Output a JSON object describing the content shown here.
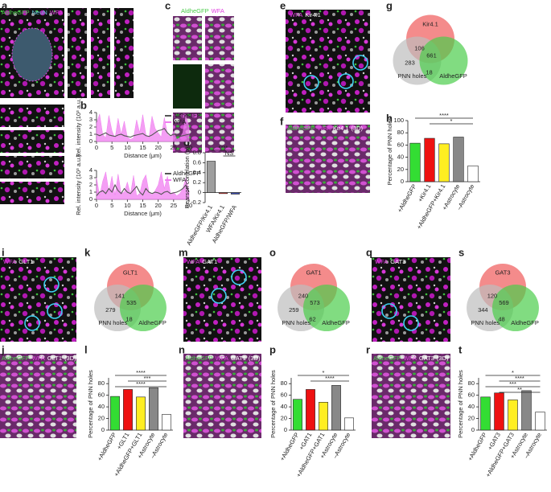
{
  "panel_letters": [
    "a",
    "b",
    "c",
    "d",
    "e",
    "f",
    "g",
    "h",
    "i",
    "j",
    "k",
    "l",
    "m",
    "n",
    "o",
    "p",
    "q",
    "r",
    "s",
    "t"
  ],
  "image_labels": {
    "a": [
      {
        "text": "AldheGFP",
        "color": "#4ccd4c"
      },
      {
        "text": "NeuN",
        "color": "#6fd3e6"
      },
      {
        "text": "WFA",
        "color": "#e040e0"
      }
    ],
    "c": [
      {
        "text": "AldheGFP",
        "color": "#4ccd4c"
      },
      {
        "text": "WFA",
        "color": "#e040e0"
      },
      {
        "text": "(3D)",
        "color": "#ffffff"
      }
    ],
    "e": [
      {
        "text": "WFA",
        "color": "#e040e0"
      },
      {
        "text": "Kir4.1",
        "color": "#ffffff"
      }
    ],
    "f": [
      {
        "text": "AldheGFP",
        "color": "#4ccd4c"
      },
      {
        "text": "WFA",
        "color": "#e040e0"
      },
      {
        "text": "Kir4.1",
        "color": "#ffffff"
      },
      {
        "text": "(3D)",
        "color": "#ffffff"
      }
    ],
    "i": [
      {
        "text": "WFA",
        "color": "#e040e0"
      },
      {
        "text": "GLT1",
        "color": "#ffffff"
      }
    ],
    "j": [
      {
        "text": "AldheGFP",
        "color": "#4ccd4c"
      },
      {
        "text": "WFA",
        "color": "#e040e0"
      },
      {
        "text": "GLT1",
        "color": "#ffffff"
      },
      {
        "text": "(3D)",
        "color": "#ffffff"
      }
    ],
    "m": [
      {
        "text": "WFA",
        "color": "#e040e0"
      },
      {
        "text": "GAT1",
        "color": "#ffffff"
      }
    ],
    "n": [
      {
        "text": "AldheGFP",
        "color": "#4ccd4c"
      },
      {
        "text": "WFA",
        "color": "#e040e0"
      },
      {
        "text": "GAT1",
        "color": "#ffffff"
      },
      {
        "text": "(3D)",
        "color": "#ffffff"
      }
    ],
    "q": [
      {
        "text": "WFA",
        "color": "#e040e0"
      },
      {
        "text": "GAT3",
        "color": "#ffffff"
      }
    ],
    "r": [
      {
        "text": "AldheGFP",
        "color": "#4ccd4c"
      },
      {
        "text": "WFA",
        "color": "#e040e0"
      },
      {
        "text": "GAT3",
        "color": "#ffffff"
      },
      {
        "text": "(3D)",
        "color": "#ffffff"
      }
    ]
  },
  "chart_data": [
    {
      "type": "line",
      "x_label": "Distance (μm)",
      "y_label": "Rel. intensity (10³ a.u.)",
      "xlim": [
        0,
        30
      ],
      "xticks": [
        0,
        5,
        10,
        15,
        20,
        25,
        30
      ],
      "ylim": [
        0,
        4
      ],
      "yticks": [
        0,
        1,
        2,
        3,
        4
      ],
      "x": [
        0,
        1,
        2,
        3,
        4,
        5,
        6,
        7,
        8,
        9,
        10,
        11,
        12,
        13,
        14,
        15,
        16,
        17,
        18,
        19,
        20,
        21,
        22,
        23,
        24,
        25,
        26,
        27,
        28,
        29,
        30
      ],
      "series": [
        {
          "name": "AldheGFP",
          "color": "#555555",
          "area": false,
          "values": [
            1.0,
            0.8,
            1.0,
            1.2,
            0.9,
            0.8,
            0.7,
            0.9,
            1.0,
            0.8,
            0.7,
            0.6,
            0.8,
            0.9,
            1.0,
            1.1,
            0.8,
            0.7,
            0.9,
            1.2,
            1.5,
            1.6,
            1.8,
            1.2,
            0.8,
            1.0,
            0.9,
            0.7,
            0.8,
            0.9,
            1.0
          ]
        },
        {
          "name": "WFA",
          "color": "#f07ef0",
          "area": true,
          "values": [
            2.5,
            3.8,
            1.0,
            0.5,
            3.6,
            1.5,
            0.4,
            3.2,
            1.0,
            2.8,
            0.6,
            0.3,
            0.5,
            3.0,
            1.2,
            3.7,
            1.0,
            0.5,
            3.5,
            1.8,
            1.2,
            0.6,
            3.3,
            1.0,
            0.6,
            1.4,
            0.3,
            0.5,
            1.2,
            3.6,
            2.0
          ]
        }
      ]
    },
    {
      "type": "line",
      "x_label": "Distance (μm)",
      "y_label": "Rel. intensity (10³ a.u.)",
      "xlim": [
        0,
        30
      ],
      "xticks": [
        0,
        5,
        10,
        15,
        20,
        25,
        30
      ],
      "ylim": [
        0,
        4
      ],
      "yticks": [
        0,
        1,
        2,
        3,
        4
      ],
      "x": [
        0,
        1,
        2,
        3,
        4,
        5,
        6,
        7,
        8,
        9,
        10,
        11,
        12,
        13,
        14,
        15,
        16,
        17,
        18,
        19,
        20,
        21,
        22,
        23,
        24,
        25,
        26,
        27,
        28,
        29,
        30
      ],
      "series": [
        {
          "name": "AldheGFP",
          "color": "#555555",
          "area": false,
          "values": [
            0.5,
            1.0,
            1.2,
            0.8,
            1.5,
            1.0,
            2.0,
            1.2,
            0.8,
            1.5,
            1.0,
            0.8,
            1.3,
            1.8,
            1.0,
            0.6,
            1.5,
            1.0,
            0.8,
            1.0,
            0.9,
            0.7,
            1.0,
            1.1,
            0.8,
            0.9,
            1.0,
            1.2,
            1.5,
            2.0,
            1.0
          ]
        },
        {
          "name": "WFA",
          "color": "#f07ef0",
          "area": true,
          "values": [
            3.0,
            0.5,
            2.5,
            3.8,
            1.0,
            3.2,
            0.6,
            3.5,
            0.8,
            1.0,
            2.4,
            0.7,
            3.3,
            0.5,
            0.8,
            2.6,
            3.4,
            1.0,
            0.6,
            1.2,
            2.0,
            3.8,
            1.5,
            3.2,
            0.8,
            1.0,
            0.5,
            0.8,
            1.5,
            3.0,
            1.0
          ]
        }
      ]
    },
    {
      "type": "bar",
      "y_label": "Pearson correlation (ρ)",
      "categories": [
        "AldheGFP/Kir4.1",
        "WFA/Kir4.1",
        "AldheGFP/WFA"
      ],
      "values": [
        0.63,
        -0.02,
        -0.03
      ],
      "colors": [
        "#9e9e9e",
        "#e53935",
        "#3949ab"
      ],
      "ylim": [
        -0.2,
        0.8
      ],
      "yticks": [
        -0.2,
        0,
        0.2,
        0.4,
        0.6,
        0.8
      ],
      "significance": [
        "****",
        "NS"
      ]
    },
    {
      "type": "venn",
      "sets": [
        {
          "name": "Kir4.1",
          "color": "#f05a5a"
        },
        {
          "name": "PNN holes",
          "color": "#bdbdbd"
        },
        {
          "name": "AldheGFP",
          "color": "#4ccd4c"
        }
      ],
      "regions": {
        "top_left": 106,
        "center": 661,
        "left": 283,
        "bottom": 18
      }
    },
    {
      "type": "bar",
      "y_label": "Percentage of PNN holes",
      "categories": [
        "+AldheGFP",
        "+Kir4.1",
        "+AldheGFP+Kir4.1",
        "+Astrocyte",
        "–Astrocyte"
      ],
      "values": [
        63,
        71,
        62,
        73,
        26
      ],
      "colors": [
        "#33dd33",
        "#ee1111",
        "#ffee22",
        "#888888",
        "#ffffff"
      ],
      "ylim": [
        0,
        100
      ],
      "yticks": [
        0,
        20,
        40,
        60,
        80,
        100
      ],
      "significance": [
        "****",
        "*"
      ]
    },
    {
      "type": "venn",
      "sets": [
        {
          "name": "GLT1",
          "color": "#f05a5a"
        },
        {
          "name": "PNN holes",
          "color": "#bdbdbd"
        },
        {
          "name": "AldheGFP",
          "color": "#4ccd4c"
        }
      ],
      "regions": {
        "top_left": 141,
        "center": 535,
        "left": 279,
        "bottom": 18
      }
    },
    {
      "type": "bar",
      "y_label": "Percentage of PNN holes",
      "categories": [
        "+AldheGFP",
        "+GLT1",
        "+AldheGFP+GLT1",
        "+Astrocyte",
        "–Astrocyte"
      ],
      "values": [
        58,
        70,
        57,
        73,
        27
      ],
      "colors": [
        "#33dd33",
        "#ee1111",
        "#ffee22",
        "#888888",
        "#ffffff"
      ],
      "ylim": [
        0,
        90
      ],
      "yticks": [
        0,
        20,
        40,
        60,
        80
      ],
      "significance": [
        "****",
        "***",
        "****"
      ]
    },
    {
      "type": "venn",
      "sets": [
        {
          "name": "GAT1",
          "color": "#f05a5a"
        },
        {
          "name": "PNN holes",
          "color": "#bdbdbd"
        },
        {
          "name": "AldheGFP",
          "color": "#4ccd4c"
        }
      ],
      "regions": {
        "top_left": 240,
        "center": 573,
        "left": 259,
        "bottom": 62
      }
    },
    {
      "type": "bar",
      "y_label": "Percentage of PNN holes",
      "categories": [
        "+AldheGFP",
        "+GAT1",
        "+AldheGFP+GAT1",
        "+Astrocyte",
        "–Astrocyte"
      ],
      "values": [
        53,
        70,
        48,
        77,
        21
      ],
      "colors": [
        "#33dd33",
        "#ee1111",
        "#ffee22",
        "#888888",
        "#ffffff"
      ],
      "ylim": [
        0,
        90
      ],
      "yticks": [
        0,
        20,
        40,
        60,
        80
      ],
      "significance": [
        "*",
        "****"
      ]
    },
    {
      "type": "venn",
      "sets": [
        {
          "name": "GAT3",
          "color": "#f05a5a"
        },
        {
          "name": "PNN holes",
          "color": "#bdbdbd"
        },
        {
          "name": "AldheGFP",
          "color": "#4ccd4c"
        }
      ],
      "regions": {
        "top_left": 120,
        "center": 569,
        "left": 344,
        "bottom": 48
      }
    },
    {
      "type": "bar",
      "y_label": "Percentage of PNN holes",
      "categories": [
        "+AldheGFP",
        "+GAT3",
        "+AldheGFP+GAT3",
        "+Astrocyte",
        "–Astrocyte"
      ],
      "values": [
        57,
        64,
        52,
        68,
        31
      ],
      "colors": [
        "#33dd33",
        "#ee1111",
        "#ffee22",
        "#888888",
        "#ffffff"
      ],
      "ylim": [
        0,
        90
      ],
      "yticks": [
        0,
        20,
        40,
        60,
        80
      ],
      "significance": [
        "*",
        "****",
        "***",
        "**"
      ]
    }
  ]
}
